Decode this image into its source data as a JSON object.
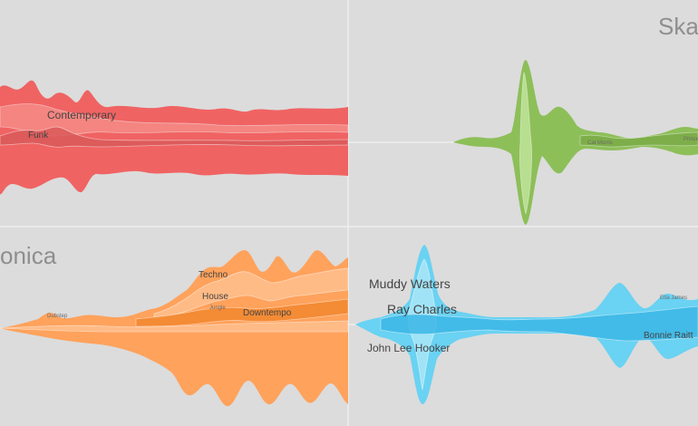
{
  "chart_data": [
    {
      "type": "area",
      "layout": "streamgraph",
      "title": "",
      "color": "#f06363",
      "color_light": "#f58b86",
      "color_dark": "#d95959",
      "series": [
        {
          "name": "Contemporary",
          "label_size": "md"
        },
        {
          "name": "Funk",
          "label_size": "sm"
        }
      ],
      "baseline": "center",
      "grid": false,
      "legend": "inline"
    },
    {
      "type": "area",
      "layout": "streamgraph",
      "title": "Ska",
      "color": "#8dbf59",
      "color_light": "#bfe39a",
      "color_dark": "#7aaa47",
      "series": [
        {
          "name": "Cat Morris",
          "label_size": "tiny"
        },
        {
          "name": "Prince Buster",
          "label_size": "tiny"
        }
      ],
      "baseline": "center",
      "grid": false,
      "legend": "inline"
    },
    {
      "type": "area",
      "layout": "streamgraph",
      "title": "onica",
      "color": "#ffa25c",
      "color_light": "#ffc08d",
      "color_dark": "#f2872e",
      "series": [
        {
          "name": "Techno",
          "label_size": "sm"
        },
        {
          "name": "House",
          "label_size": "sm"
        },
        {
          "name": "Jungle",
          "label_size": "tiny"
        },
        {
          "name": "Downtempo",
          "label_size": "sm"
        },
        {
          "name": "Dubstep",
          "label_size": "tiny"
        }
      ],
      "baseline": "center",
      "grid": false,
      "legend": "inline"
    },
    {
      "type": "area",
      "layout": "streamgraph",
      "title": "",
      "color": "#6ad2f2",
      "color_light": "#a9e6f8",
      "color_dark": "#3bb7e6",
      "series": [
        {
          "name": "Muddy Waters",
          "label_size": "lg"
        },
        {
          "name": "Ray Charles",
          "label_size": "lg"
        },
        {
          "name": "John Lee Hooker",
          "label_size": "md"
        },
        {
          "name": "Bonnie Raitt",
          "label_size": "sm"
        },
        {
          "name": "Etta James",
          "label_size": "tiny"
        }
      ],
      "baseline": "center",
      "grid": false,
      "legend": "inline"
    }
  ]
}
